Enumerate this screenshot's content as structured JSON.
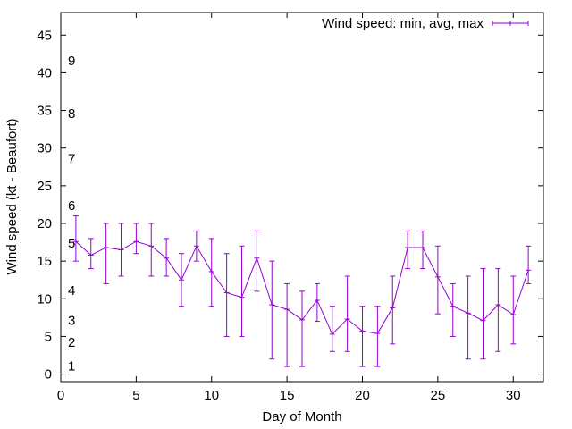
{
  "chart_data": {
    "type": "line",
    "title": "",
    "xlabel": "Day of Month",
    "ylabel": "Wind speed (kt - Beaufort)",
    "xlim": [
      0,
      32
    ],
    "ylim": [
      -1,
      48
    ],
    "xticks": [
      0,
      5,
      10,
      15,
      20,
      25,
      30
    ],
    "yticks": [
      0,
      5,
      10,
      15,
      20,
      25,
      30,
      35,
      40,
      45
    ],
    "grid": false,
    "legend_position": "top-right",
    "color": "#9400d3",
    "series": [
      {
        "name": "Wind speed: min, avg, max",
        "x": [
          1,
          2,
          3,
          4,
          5,
          6,
          7,
          8,
          9,
          10,
          11,
          12,
          13,
          14,
          15,
          16,
          17,
          18,
          19,
          20,
          21,
          22,
          23,
          24,
          25,
          26,
          27,
          28,
          29,
          30,
          31
        ],
        "avg": [
          17.6,
          15.8,
          16.8,
          16.5,
          17.6,
          17.0,
          15.4,
          12.5,
          17.0,
          13.6,
          10.8,
          10.2,
          15.4,
          9.2,
          8.6,
          7.2,
          9.8,
          5.3,
          7.3,
          5.7,
          5.4,
          8.8,
          16.8,
          16.8,
          12.9,
          9.0,
          8.1,
          7.1,
          9.2,
          7.9,
          13.8
        ],
        "min": [
          15,
          14,
          12,
          13,
          16,
          13,
          13,
          9,
          15,
          9,
          5,
          5,
          11,
          2,
          1,
          1,
          7,
          3,
          3,
          1,
          1,
          4,
          14,
          14,
          8,
          5,
          2,
          2,
          3,
          4,
          12
        ],
        "max": [
          21,
          18,
          20,
          20,
          20,
          20,
          18,
          16,
          19,
          18,
          16,
          17,
          19,
          15,
          12,
          11,
          12,
          9,
          13,
          9,
          9,
          13,
          19,
          19,
          17,
          12,
          13,
          14,
          14,
          13,
          17
        ]
      }
    ],
    "beaufort_labels": [
      {
        "label": "1",
        "y": 1.1
      },
      {
        "label": "2",
        "y": 4.2
      },
      {
        "label": "3",
        "y": 7.1
      },
      {
        "label": "4",
        "y": 11.1
      },
      {
        "label": "5",
        "y": 17.4
      },
      {
        "label": "6",
        "y": 22.4
      },
      {
        "label": "7",
        "y": 28.6
      },
      {
        "label": "8",
        "y": 34.6
      },
      {
        "label": "9",
        "y": 41.6
      }
    ]
  }
}
